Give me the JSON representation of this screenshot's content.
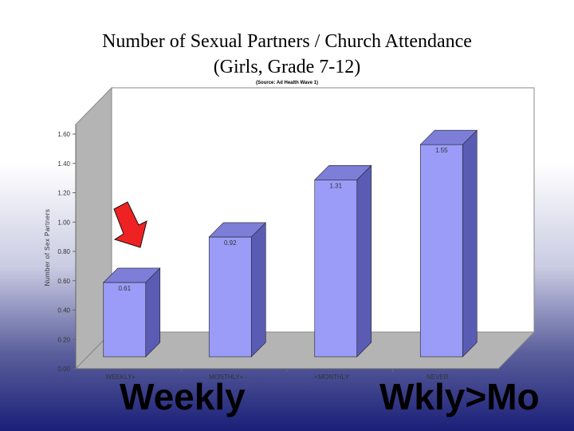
{
  "title_line1": "Number of Sexual Partners / Church Attendance",
  "title_line2": "(Girls, Grade 7-12)",
  "source_note": "(Source: Ad Health Wave 1)",
  "annotations": {
    "left": "Weekly",
    "right": "Wkly>Mo"
  },
  "colors": {
    "bar_front": "#9a9cf8",
    "bar_side": "#5a5cb4",
    "bar_top": "#7c7ed8",
    "arrow": "#ee2222"
  },
  "chart_data": {
    "type": "bar",
    "ylabel": "Number of Sex Partners",
    "ylim": [
      0,
      1.6
    ],
    "yticks": [
      "0.00",
      "0.20",
      "0.40",
      "0.60",
      "0.80",
      "1.00",
      "1.20",
      "1.40",
      "1.60"
    ],
    "categories": [
      "WEEKLY+",
      "MONTHLY+",
      "<MONTHLY",
      "NEVER"
    ],
    "values": [
      0.61,
      0.92,
      1.31,
      1.55
    ],
    "data_labels": [
      "0.61",
      "0.92",
      "1.31",
      "1.55"
    ],
    "grid": false,
    "style": "3d"
  }
}
